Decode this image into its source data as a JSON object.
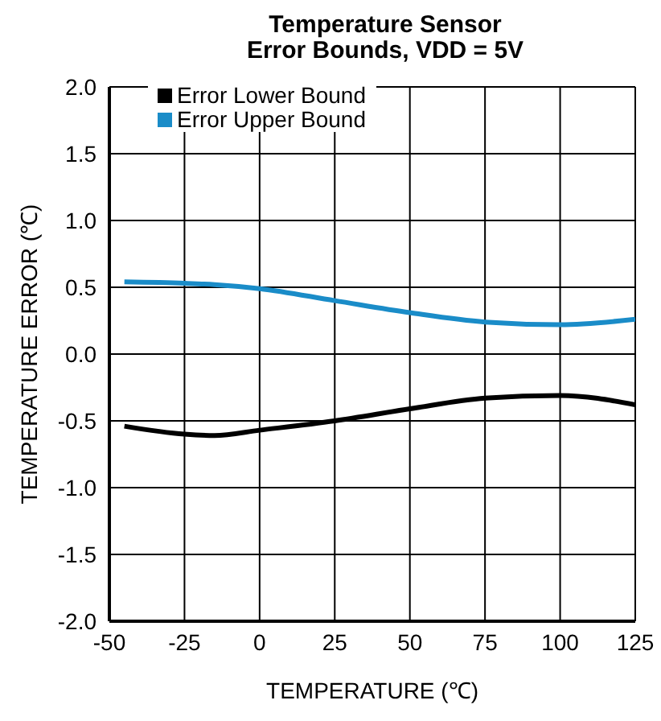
{
  "chart_data": {
    "type": "line",
    "title": "Temperature Sensor\nError Bounds, VDD = 5V",
    "xlabel": "TEMPERATURE (℃)",
    "ylabel": "TEMPERATURE ERROR (℃)",
    "x": [
      -45,
      -25,
      -15,
      0,
      25,
      50,
      75,
      100,
      125
    ],
    "series": [
      {
        "name": "Error Lower Bound",
        "color": "#000000",
        "values": [
          -0.54,
          -0.6,
          -0.61,
          -0.57,
          -0.5,
          -0.41,
          -0.33,
          -0.31,
          -0.38
        ]
      },
      {
        "name": "Error Upper Bound",
        "color": "#1a8cc8",
        "values": [
          0.54,
          0.53,
          0.52,
          0.49,
          0.4,
          0.31,
          0.24,
          0.22,
          0.26
        ]
      }
    ],
    "xlim": [
      -50,
      125
    ],
    "xticks": [
      -50,
      -25,
      0,
      25,
      50,
      75,
      100,
      125
    ],
    "ylim": [
      -2,
      2
    ],
    "yticks": [
      {
        "value": -2,
        "label": "-2.0"
      },
      -1.5,
      {
        "value": -1,
        "label": "-1.0"
      },
      -0.5,
      {
        "value": 0,
        "label": "0.0"
      },
      0.5,
      {
        "value": 1,
        "label": "1.0"
      },
      1.5,
      {
        "value": 2,
        "label": "2.0"
      }
    ],
    "grid": true,
    "legend": "top left",
    "marker": "none",
    "line_style": "solid"
  }
}
